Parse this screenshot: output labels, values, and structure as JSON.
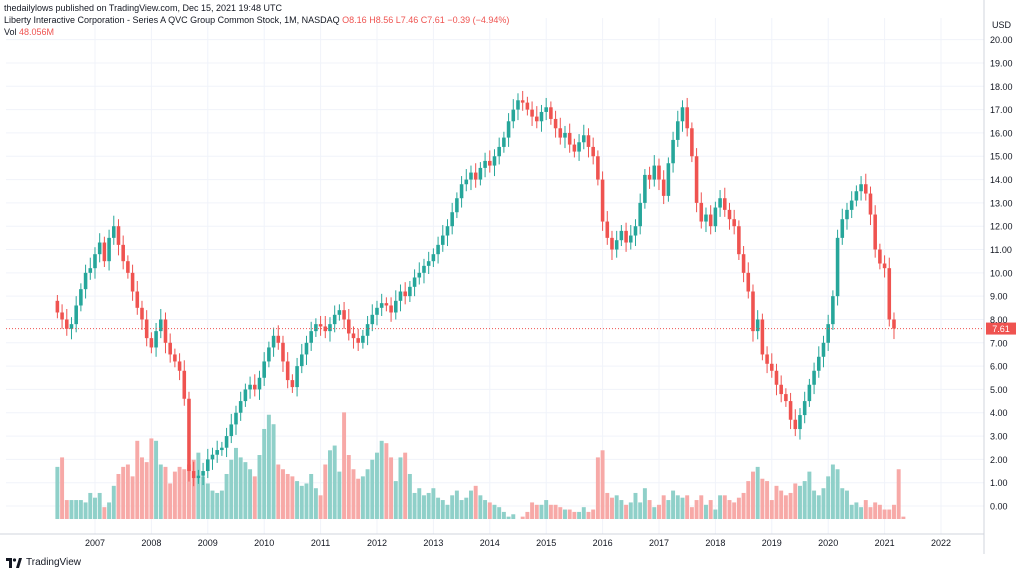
{
  "publisher_line": "thedailylows published on TradingView.com, Dec 15, 2021 19:48 UTC",
  "header": {
    "title": "Liberty Interactive Corporation - Series A QVC Group Common Stock, 1M, NASDAQ",
    "open": "O8.16",
    "high": "H8.56",
    "low": "L7.46",
    "close": "C7.61",
    "change": "−0.39 (−4.94%)",
    "vol_label": "Vol",
    "vol_value": "48.056M"
  },
  "footer": {
    "brand": "TradingView"
  },
  "colors": {
    "up": "#26a69a",
    "down": "#ef5350",
    "up_vol": "#8fd0c9",
    "down_vol": "#f7a9a7",
    "grid": "#f0f3fa"
  },
  "chart_data": {
    "type": "candlestick",
    "currency_label": "USD",
    "price_axis_ticks": [
      "20.00",
      "19.00",
      "18.00",
      "17.00",
      "16.00",
      "15.00",
      "14.00",
      "13.00",
      "12.00",
      "11.00",
      "10.00",
      "9.00",
      "8.00",
      "7.00",
      "6.00",
      "5.00",
      "4.00",
      "3.00",
      "2.00",
      "1.00",
      "0.00"
    ],
    "ylim": [
      -1.2,
      20.5
    ],
    "x_ticks": [
      "2007",
      "2008",
      "2009",
      "2010",
      "2011",
      "2012",
      "2013",
      "2014",
      "2015",
      "2016",
      "2017",
      "2018",
      "2019",
      "2020",
      "2021",
      "2022"
    ],
    "x_start_year": 2006.333,
    "last_price_label": "7.61",
    "last_price": 7.61,
    "volume_scale_max": 3.9,
    "close_series": [
      8.3,
      8.0,
      7.6,
      7.8,
      8.6,
      9.3,
      10.0,
      10.2,
      10.8,
      11.3,
      10.5,
      11.5,
      12.0,
      11.2,
      10.5,
      10.0,
      9.2,
      8.5,
      8.0,
      7.2,
      6.8,
      7.5,
      8.0,
      7.0,
      6.5,
      6.2,
      5.8,
      4.6,
      1.5,
      1.2,
      1.3,
      1.5,
      2.0,
      2.2,
      2.4,
      2.5,
      3.0,
      3.5,
      4.0,
      4.5,
      5.0,
      5.2,
      5.0,
      5.5,
      6.2,
      6.8,
      7.3,
      7.0,
      6.2,
      5.4,
      5.1,
      6.0,
      6.5,
      7.0,
      7.5,
      7.8,
      7.7,
      7.5,
      7.8,
      8.2,
      8.4,
      8.0,
      7.4,
      7.2,
      7.0,
      7.3,
      7.8,
      8.2,
      8.5,
      8.7,
      8.6,
      8.3,
      8.8,
      9.2,
      9.0,
      9.4,
      9.8,
      10.0,
      10.3,
      10.5,
      10.8,
      11.2,
      11.6,
      12.0,
      12.6,
      13.2,
      13.8,
      14.0,
      14.3,
      14.0,
      14.5,
      14.8,
      14.6,
      15.0,
      15.4,
      15.8,
      16.5,
      17.0,
      17.4,
      17.3,
      17.0,
      16.7,
      16.5,
      16.9,
      17.1,
      16.6,
      16.2,
      15.8,
      16.0,
      15.5,
      15.2,
      15.6,
      15.9,
      15.4,
      15.0,
      14.0,
      12.2,
      11.5,
      11.0,
      11.4,
      11.8,
      11.3,
      11.6,
      12.0,
      13.0,
      14.2,
      14.0,
      14.6,
      14.0,
      13.3,
      14.7,
      15.7,
      16.5,
      17.1,
      16.2,
      15.0,
      13.0,
      12.2,
      12.5,
      12.0,
      12.8,
      13.2,
      12.7,
      12.3,
      12.0,
      10.8,
      10.0,
      9.2,
      7.5,
      8.0,
      6.5,
      6.1,
      5.8,
      5.2,
      4.8,
      4.5,
      3.7,
      3.3,
      3.9,
      4.5,
      5.2,
      5.8,
      6.4,
      7.0,
      7.8,
      9.0,
      11.5,
      12.3,
      12.7,
      13.1,
      13.5,
      13.8,
      13.4,
      12.5,
      11.0,
      10.4,
      10.2,
      8.0,
      7.61
    ],
    "volume_series": [
      2.2,
      2.6,
      0.8,
      0.8,
      0.8,
      0.8,
      0.7,
      1.1,
      0.9,
      1.1,
      0.5,
      0.7,
      1.4,
      1.9,
      2.2,
      2.3,
      1.8,
      3.3,
      2.6,
      2.4,
      3.4,
      3.3,
      2.3,
      2.2,
      1.5,
      2.0,
      2.2,
      2.1,
      2.3,
      2.5,
      2.8,
      1.8,
      1.5,
      1.2,
      1.1,
      1.2,
      1.9,
      2.5,
      3.0,
      2.6,
      2.4,
      2.1,
      1.8,
      2.7,
      3.8,
      4.4,
      4.0,
      2.3,
      2.1,
      1.9,
      1.8,
      1.6,
      1.4,
      1.5,
      1.9,
      1.3,
      1.0,
      2.3,
      2.9,
      3.1,
      2.0,
      4.5,
      2.7,
      2.1,
      1.7,
      1.8,
      2.1,
      2.5,
      2.8,
      3.3,
      3.2,
      2.6,
      1.6,
      2.6,
      2.8,
      1.9,
      1.1,
      1.3,
      1.0,
      1.1,
      1.3,
      0.9,
      0.8,
      0.6,
      1.0,
      1.2,
      0.8,
      0.9,
      1.2,
      1.4,
      1.0,
      0.8,
      0.7,
      0.6,
      0.5,
      0.3,
      0.1,
      0.2,
      0.0,
      0.1,
      0.3,
      0.7,
      0.6,
      0.6,
      0.8,
      0.6,
      0.6,
      0.5,
      0.4,
      0.4,
      0.3,
      0.3,
      0.5,
      0.3,
      0.4,
      2.6,
      2.9,
      1.1,
      0.9,
      1.0,
      0.8,
      0.6,
      0.7,
      1.1,
      0.7,
      1.3,
      0.8,
      0.5,
      0.6,
      1.0,
      0.8,
      1.2,
      1.0,
      0.9,
      1.0,
      0.5,
      0.8,
      1.0,
      0.6,
      0.8,
      0.4,
      1.0,
      1.0,
      0.8,
      0.7,
      0.9,
      1.1,
      1.6,
      2.0,
      2.2,
      1.7,
      1.6,
      0.8,
      1.4,
      1.2,
      1.0,
      1.1,
      1.5,
      1.4,
      1.6,
      2.0,
      1.2,
      1.0,
      1.3,
      1.8,
      2.3,
      2.1,
      1.3,
      1.2,
      0.6,
      0.7,
      0.5,
      0.8,
      0.5,
      0.7,
      0.6,
      0.4,
      0.4,
      0.6,
      2.1,
      0.1
    ],
    "notes": "Monthly candles reconstructed from the visible close path; volume in millions of shares (vol axis shares the price scale labels)."
  }
}
